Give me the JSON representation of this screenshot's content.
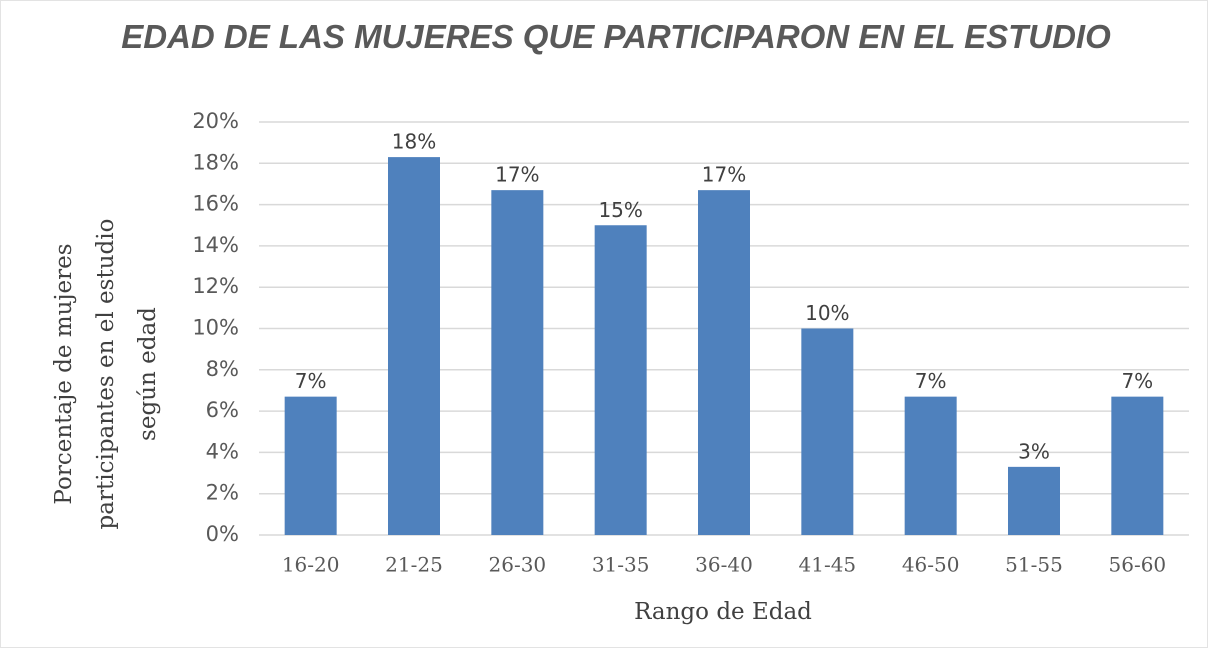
{
  "chart_data": {
    "type": "bar",
    "title": "EDAD DE LAS MUJERES QUE PARTICIPARON EN EL ESTUDIO",
    "y_label": "Porcentaje de mujeres participantes en el estudio según edad",
    "x_label": "Rango de Edad",
    "categories": [
      "16-20",
      "21-25",
      "26-30",
      "31-35",
      "36-40",
      "41-45",
      "46-50",
      "51-55",
      "56-60"
    ],
    "values": [
      6.7,
      18.3,
      16.7,
      15.0,
      16.7,
      10.0,
      6.7,
      3.3,
      6.7
    ],
    "value_labels": [
      "7%",
      "18%",
      "17%",
      "15%",
      "17%",
      "10%",
      "7%",
      "3%",
      "7%"
    ],
    "color": "#4f81bd",
    "ylim": [
      0,
      20
    ],
    "yticks": [
      {
        "value": 0,
        "label": "0%"
      },
      {
        "value": 2,
        "label": "2%"
      },
      {
        "value": 4,
        "label": "4%"
      },
      {
        "value": 6,
        "label": "6%"
      },
      {
        "value": 8,
        "label": "8%"
      },
      {
        "value": 10,
        "label": "10%"
      },
      {
        "value": 12,
        "label": "12%"
      },
      {
        "value": 14,
        "label": "14%"
      },
      {
        "value": 16,
        "label": "16%"
      },
      {
        "value": 18,
        "label": "18%"
      },
      {
        "value": 20,
        "label": "20%"
      }
    ],
    "grid": true
  }
}
